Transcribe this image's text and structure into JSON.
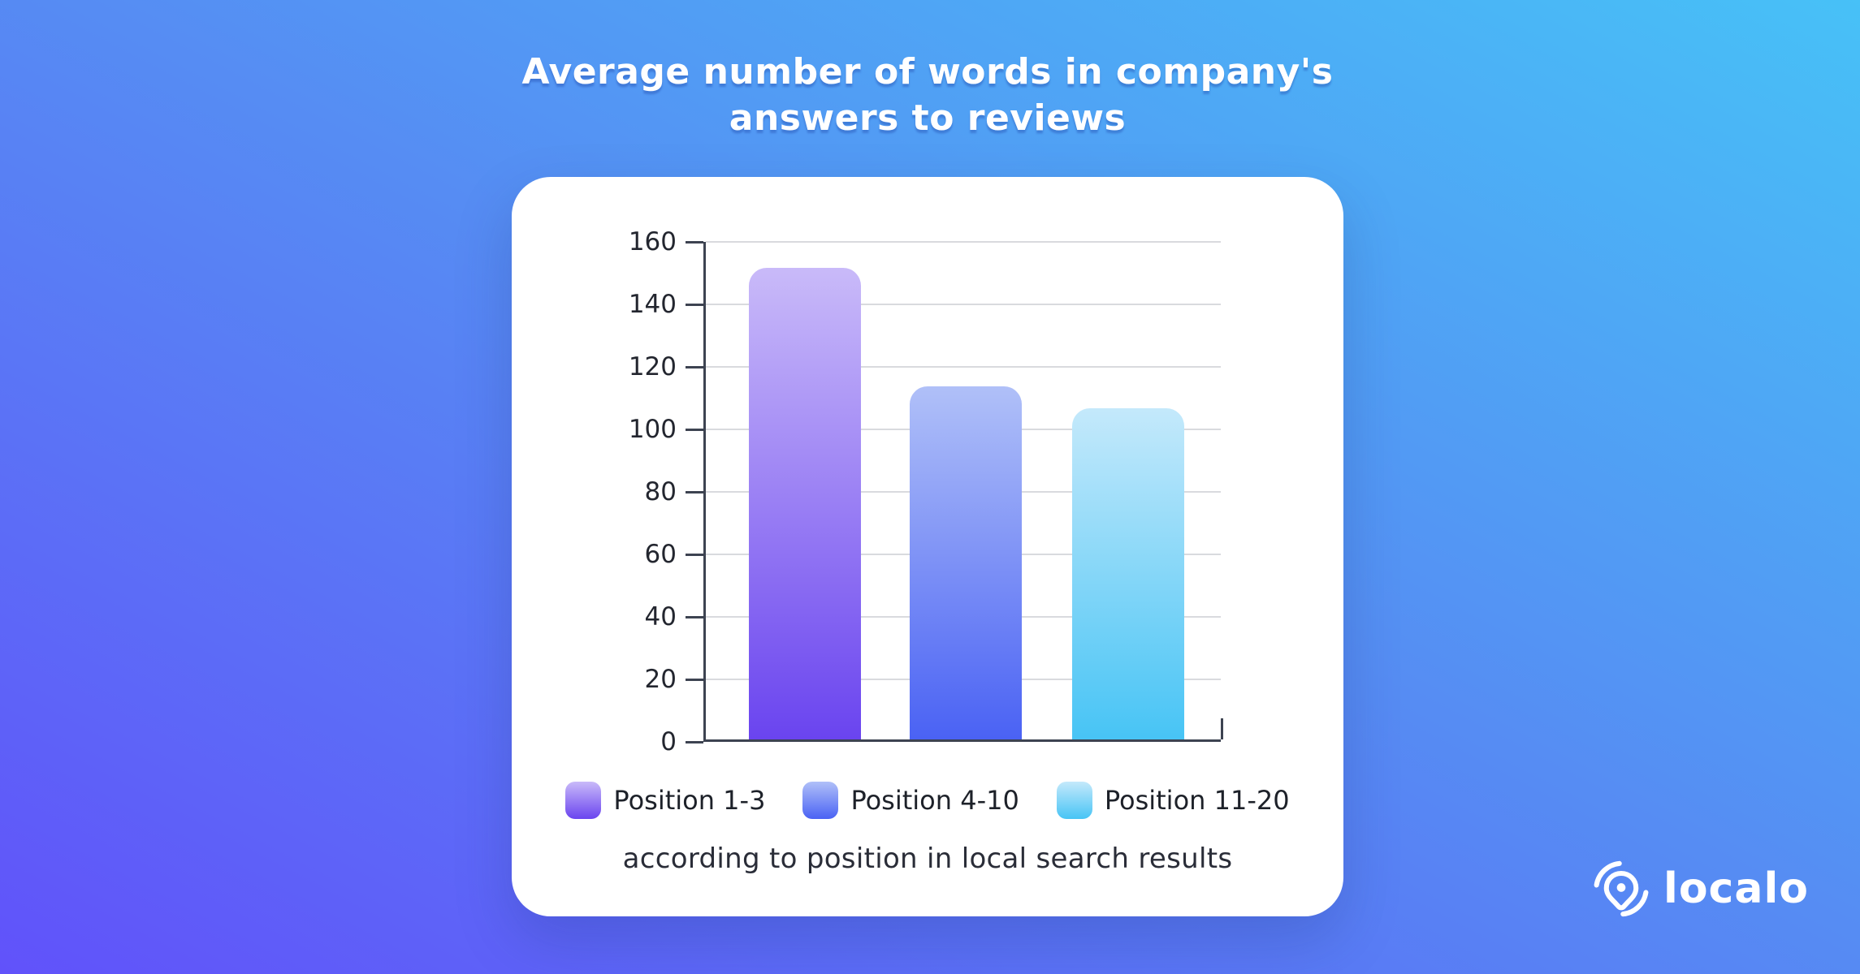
{
  "header": {
    "title_line1": "Average number of words in company's",
    "title_line2": "answers to reviews"
  },
  "chart_data": {
    "type": "bar",
    "title": "Average number of words in company's answers to reviews",
    "subtitle": "according to position in local search results",
    "categories": [
      "Position 1-3",
      "Position 4-10",
      "Position 11-20"
    ],
    "values": [
      151,
      113,
      106
    ],
    "xlabel": "",
    "ylabel": "",
    "ylim": [
      0,
      160
    ],
    "yticks": [
      0,
      20,
      40,
      60,
      80,
      100,
      120,
      140,
      160
    ],
    "grid": true,
    "legend_position": "bottom",
    "bar_gradients": [
      {
        "top": "#c9baf9",
        "bottom": "#6a44ef"
      },
      {
        "top": "#b0c0f8",
        "bottom": "#4a62f4"
      },
      {
        "top": "#c4e9fb",
        "bottom": "#47c4f5"
      }
    ]
  },
  "logo": {
    "text": "localo",
    "icon": "localo-pin-icon"
  },
  "colors": {
    "bg_gradient_start": "#6152fa",
    "bg_gradient_mid": "#568cf3",
    "bg_gradient_end": "#47c1f7",
    "card": "#ffffff",
    "axis": "#3d4351",
    "grid": "#d9dade",
    "text_dark": "#23262f",
    "title": "#ffffff"
  }
}
